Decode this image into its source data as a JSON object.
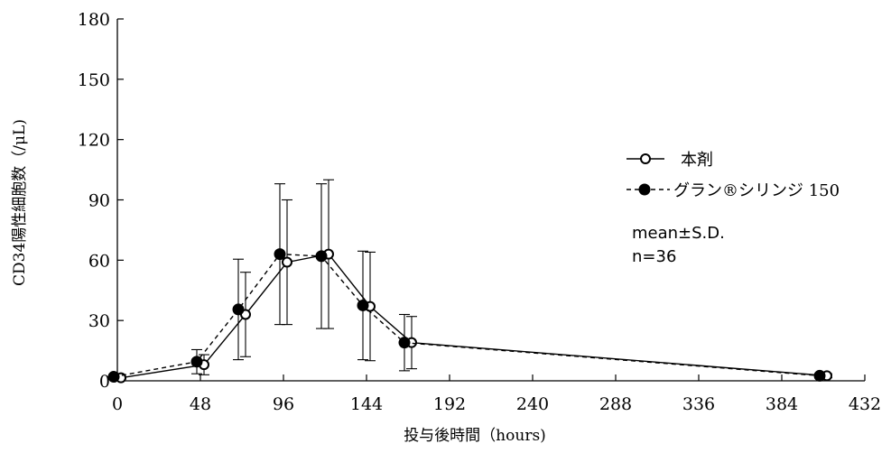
{
  "chart_data": {
    "type": "line",
    "title": "",
    "xlabel": "投与後時間（hours)",
    "ylabel": "CD34陽性細胞数（/μL)",
    "xlim": [
      0,
      432
    ],
    "ylim": [
      0,
      180
    ],
    "xticks": [
      0,
      48,
      96,
      144,
      192,
      240,
      288,
      336,
      384,
      432
    ],
    "yticks": [
      0,
      30,
      60,
      90,
      120,
      150,
      180
    ],
    "grid": false,
    "legend_position": "right",
    "series": [
      {
        "name": "本剤",
        "marker": "open-circle",
        "line": "solid",
        "x": [
          0,
          48,
          72,
          96,
          120,
          144,
          168,
          408
        ],
        "y": [
          1.5,
          8,
          33,
          59,
          63,
          37,
          19,
          2.5
        ],
        "err": [
          0.5,
          5,
          21,
          31,
          37,
          27,
          13,
          1
        ]
      },
      {
        "name": "グラン®シリンジ 150",
        "marker": "filled-circle",
        "line": "dashed",
        "x": [
          0,
          48,
          72,
          96,
          120,
          144,
          168,
          408
        ],
        "y": [
          2,
          9.5,
          35.5,
          63,
          62,
          37.5,
          19,
          2.5
        ],
        "err": [
          0.5,
          6,
          25,
          35,
          36,
          27,
          14,
          1
        ]
      }
    ],
    "annotations": [
      "mean±S.D.",
      "n=36"
    ]
  }
}
